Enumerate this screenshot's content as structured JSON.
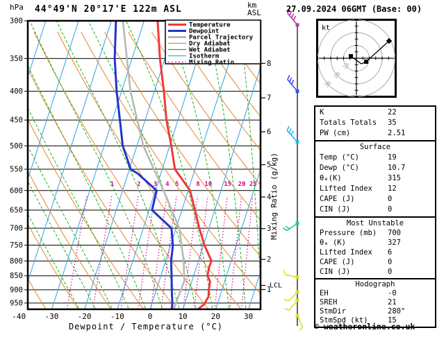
{
  "header": {
    "pressure_unit": "hPa",
    "title": "44°49'N 20°17'E 122m ASL",
    "altitude_unit": "km\nASL",
    "datetime": "27.09.2024 06GMT (Base: 00)"
  },
  "axes": {
    "pressure_ticks": [
      300,
      350,
      400,
      450,
      500,
      550,
      600,
      650,
      700,
      750,
      800,
      850,
      900,
      950
    ],
    "temp_ticks_c": [
      -40,
      -30,
      -20,
      -10,
      0,
      10,
      20,
      30
    ],
    "xlabel": "Dewpoint / Temperature (°C)",
    "mixing_ratio_label": "Mixing Ratio (g/kg)",
    "km_ticks": [
      {
        "label": "8",
        "p": 357
      },
      {
        "label": "7",
        "p": 411
      },
      {
        "label": "6",
        "p": 472
      },
      {
        "label": "5",
        "p": 540
      },
      {
        "label": "4",
        "p": 616
      },
      {
        "label": "3",
        "p": 701
      },
      {
        "label": "2",
        "p": 795
      },
      {
        "label": "1",
        "p": 899
      }
    ],
    "lcl": {
      "label": "LCL",
      "p": 884
    }
  },
  "legend": [
    {
      "label": "Temperature",
      "color": "#ee3a3a",
      "width": 3,
      "dash": ""
    },
    {
      "label": "Dewpoint",
      "color": "#2233cc",
      "width": 3,
      "dash": ""
    },
    {
      "label": "Parcel Trajectory",
      "color": "#b8b8b8",
      "width": 3,
      "dash": ""
    },
    {
      "label": "Dry Adiabat",
      "color": "#e2862d",
      "width": 1.2,
      "dash": ""
    },
    {
      "label": "Wet Adiabat",
      "color": "#22b022",
      "width": 1.2,
      "dash": ""
    },
    {
      "label": "Isotherm",
      "color": "#3fa8e8",
      "width": 1.2,
      "dash": ""
    },
    {
      "label": "Mixing Ratio",
      "color": "#dd0088",
      "width": 1.2,
      "dash": "2,3"
    }
  ],
  "chart_data": {
    "type": "line",
    "subtype": "skew-t-log-p sounding",
    "pressure_range_hpa": [
      300,
      975
    ],
    "temp_axis_range_c": [
      -40,
      30
    ],
    "series": [
      {
        "name": "Temperature",
        "color": "#ee3a3a",
        "points_p_t": [
          [
            974,
            14.6
          ],
          [
            955,
            16.0
          ],
          [
            925,
            16.6
          ],
          [
            900,
            16.0
          ],
          [
            870,
            15.6
          ],
          [
            850,
            14.2
          ],
          [
            820,
            13.9
          ],
          [
            800,
            14.0
          ],
          [
            750,
            10.3
          ],
          [
            700,
            7.1
          ],
          [
            650,
            4.0
          ],
          [
            600,
            0.6
          ],
          [
            550,
            -6.1
          ],
          [
            500,
            -9.5
          ],
          [
            450,
            -13.5
          ],
          [
            400,
            -17.1
          ],
          [
            350,
            -21.5
          ],
          [
            300,
            -25.9
          ]
        ]
      },
      {
        "name": "Dewpoint",
        "color": "#2233cc",
        "points_p_t": [
          [
            974,
            6.6
          ],
          [
            950,
            6.2
          ],
          [
            900,
            4.7
          ],
          [
            850,
            3.3
          ],
          [
            800,
            1.7
          ],
          [
            750,
            0.7
          ],
          [
            700,
            -1.4
          ],
          [
            660,
            -7.5
          ],
          [
            650,
            -9.1
          ],
          [
            600,
            -9.6
          ],
          [
            560,
            -17.0
          ],
          [
            550,
            -19.6
          ],
          [
            500,
            -24.3
          ],
          [
            450,
            -27.7
          ],
          [
            400,
            -31.5
          ],
          [
            350,
            -35.3
          ],
          [
            300,
            -38.6
          ]
        ]
      },
      {
        "name": "Parcel Trajectory",
        "color": "#b8b8b8",
        "points_p_t": [
          [
            974,
            7.2
          ],
          [
            900,
            7.5
          ],
          [
            868,
            7.7
          ],
          [
            800,
            5.5
          ],
          [
            700,
            1.0
          ],
          [
            600,
            -7.5
          ],
          [
            500,
            -18.0
          ],
          [
            400,
            -27.3
          ],
          [
            300,
            -36.5
          ]
        ]
      }
    ],
    "isotherms_c": {
      "min": -60,
      "max": 40,
      "step": 10
    },
    "dry_adiabats_c": {
      "min": -40,
      "max": 140,
      "step": 10
    },
    "wet_adiabats_c": {
      "min": -20,
      "max": 40,
      "step": 5
    },
    "mixing_ratio_lines_gkg": [
      0.5,
      1,
      2,
      3,
      4,
      5,
      8,
      10,
      15,
      20,
      25
    ],
    "mixing_ratio_labels": [
      "1",
      "2",
      "3",
      "4",
      "5",
      "8",
      "10",
      "15",
      "20",
      "25"
    ]
  },
  "wind_barbs": [
    {
      "p": 305,
      "color": "#b03ab0",
      "angle": 40,
      "ticks": 4
    },
    {
      "p": 400,
      "color": "#3c50e8",
      "angle": 40,
      "ticks": 3
    },
    {
      "p": 492,
      "color": "#30b4e8",
      "angle": 42,
      "ticks": 3
    },
    {
      "p": 686,
      "color": "#28c896",
      "angle": 125,
      "ticks": 2
    },
    {
      "p": 855,
      "color": "#dede30",
      "angle": 78,
      "ticks": 1
    },
    {
      "p": 909,
      "color": "#dede30",
      "angle": 135,
      "ticks": 1
    },
    {
      "p": 940,
      "color": "#dede30",
      "angle": 140,
      "ticks": 1
    },
    {
      "p": 1000,
      "color": "#dede30",
      "angle": 205,
      "ticks": 1
    }
  ],
  "hodograph": {
    "unit_label": "kt",
    "rings_kt": [
      10,
      20,
      30
    ],
    "tick_step_kt": 5,
    "trace_kt": [
      [
        -4.3,
        1.6
      ],
      [
        3.8,
        -4.3
      ],
      [
        7.6,
        -2.7
      ]
    ],
    "marker_squares_kt": [
      [
        -4.3,
        1.6
      ],
      [
        7.6,
        -2.7
      ]
    ],
    "storm_vector_tip_kt": [
      25.4,
      13.5
    ]
  },
  "table": {
    "sections": [
      {
        "title": "",
        "rows": [
          [
            "K",
            "22"
          ],
          [
            "Totals Totals",
            "35"
          ],
          [
            "PW (cm)",
            "2.51"
          ]
        ]
      },
      {
        "title": "Surface",
        "rows": [
          [
            "Temp (°C)",
            "19"
          ],
          [
            "Dewp (°C)",
            "10.7"
          ],
          [
            "θₑ(K)",
            "315"
          ],
          [
            "Lifted Index",
            "12"
          ],
          [
            "CAPE (J)",
            "0"
          ],
          [
            "CIN (J)",
            "0"
          ]
        ]
      },
      {
        "title": "Most Unstable",
        "rows": [
          [
            "Pressure (mb)",
            "700"
          ],
          [
            "θₑ (K)",
            "327"
          ],
          [
            "Lifted Index",
            "6"
          ],
          [
            "CAPE (J)",
            "0"
          ],
          [
            "CIN (J)",
            "0"
          ]
        ]
      },
      {
        "title": "Hodograph",
        "rows": [
          [
            "EH",
            "-0"
          ],
          [
            "SREH",
            "21"
          ],
          [
            "StmDir",
            "280°"
          ],
          [
            "StmSpd (kt)",
            "15"
          ]
        ]
      }
    ]
  },
  "footer": "© weatheronline.co.uk"
}
